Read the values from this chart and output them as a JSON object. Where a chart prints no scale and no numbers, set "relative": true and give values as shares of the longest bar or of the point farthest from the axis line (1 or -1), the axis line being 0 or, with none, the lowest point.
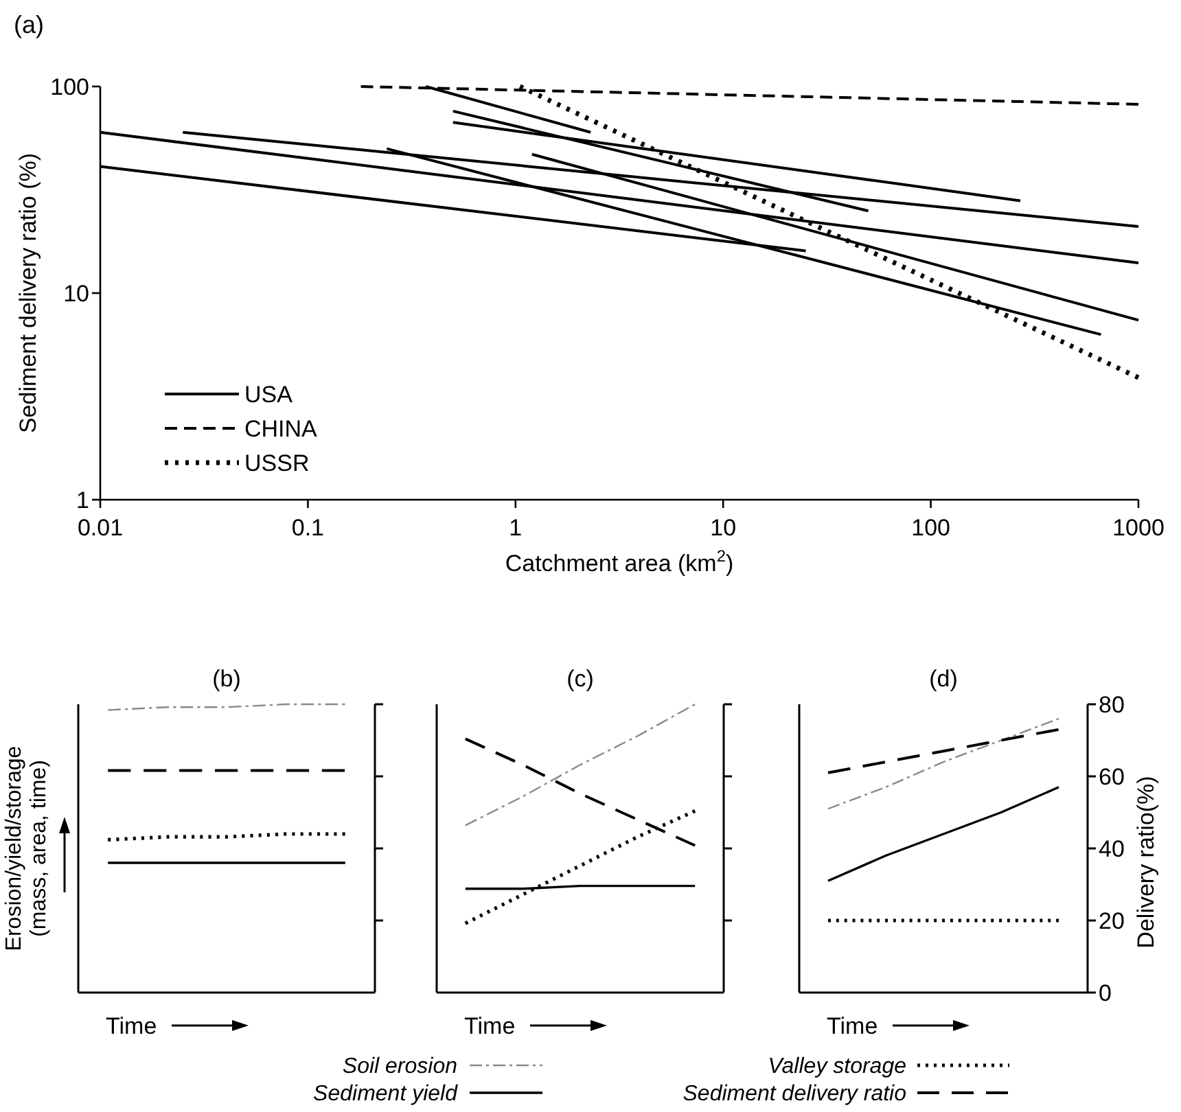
{
  "chart_data": [
    {
      "type": "line",
      "title": "(a)",
      "xlabel": "Catchment area (km$^{2}$)",
      "ylabel": "Sediment delivery ratio (%)",
      "log": "xy",
      "xlim": [
        0.01,
        1000
      ],
      "ylim": [
        1,
        100
      ],
      "xticks": [
        0.01,
        0.1,
        1,
        10,
        100,
        1000
      ],
      "yticks": [
        1,
        10,
        100
      ],
      "legend": "bottom left",
      "series": [
        {
          "name": "USA",
          "color": "#000000",
          "line_style": "solid",
          "x": [
            0.01,
            1000
          ],
          "values": [
            60,
            14
          ]
        },
        {
          "color": "#000000",
          "line_style": "solid",
          "x": [
            0.01,
            25
          ],
          "values": [
            41,
            16
          ]
        },
        {
          "color": "#000000",
          "line_style": "solid",
          "x": [
            0.025,
            1000
          ],
          "values": [
            60,
            21
          ]
        },
        {
          "color": "#000000",
          "line_style": "solid",
          "x": [
            0.24,
            660
          ],
          "values": [
            50,
            6.3
          ]
        },
        {
          "color": "#000000",
          "line_style": "solid",
          "x": [
            0.37,
            2.3
          ],
          "values": [
            100,
            60
          ]
        },
        {
          "color": "#000000",
          "line_style": "solid",
          "x": [
            0.5,
            50
          ],
          "values": [
            76,
            25
          ]
        },
        {
          "color": "#000000",
          "line_style": "solid",
          "x": [
            0.5,
            270
          ],
          "values": [
            67,
            28
          ]
        },
        {
          "color": "#000000",
          "line_style": "solid",
          "x": [
            1.2,
            1000
          ],
          "values": [
            47,
            7.4
          ]
        },
        {
          "name": "CHINA",
          "color": "#000000",
          "line_style": "dashed",
          "x": [
            0.18,
            1000
          ],
          "values": [
            100,
            82
          ]
        },
        {
          "name": "USSR",
          "color": "#000000",
          "line_style": "dotted",
          "x": [
            1.05,
            1000
          ],
          "values": [
            100,
            3.9
          ]
        }
      ]
    },
    {
      "type": "line",
      "title": "(b)",
      "xlabel": "Time",
      "ylabel": "Erosion/yield/storage (mass, area, time)",
      "categories": [
        null,
        null,
        null,
        null,
        null
      ],
      "relative": true,
      "series": [
        {
          "color": "#888888",
          "line_style": "dashdot",
          "values": [
            0.98,
            0.99,
            0.99,
            1,
            1
          ]
        },
        {
          "color": "#000000",
          "line_style": "solid",
          "values": [
            0.45,
            0.45,
            0.45,
            0.45,
            0.45
          ]
        },
        {
          "color": "#000000",
          "line_style": "dotted",
          "values": [
            0.53,
            0.54,
            0.54,
            0.55,
            0.55
          ]
        },
        {
          "color": "#000000",
          "line_style": "dashed",
          "values": [
            0.77,
            0.77,
            0.77,
            0.77,
            0.77
          ]
        }
      ]
    },
    {
      "type": "line",
      "title": "(c)",
      "xlabel": "Time",
      "categories": [
        null,
        null,
        null,
        null,
        null
      ],
      "relative": true,
      "legend": "bottom",
      "series": [
        {
          "name": "Soil erosion",
          "color": "#888888",
          "line_style": "dashdot",
          "values": [
            0.58,
            0.68,
            0.79,
            0.89,
            1
          ]
        },
        {
          "name": "Sediment yield",
          "color": "#000000",
          "line_style": "solid",
          "values": [
            0.36,
            0.36,
            0.37,
            0.37,
            0.37
          ]
        },
        {
          "name": "Valley storage",
          "color": "#000000",
          "line_style": "dotted",
          "values": [
            0.24,
            0.34,
            0.44,
            0.54,
            0.63
          ]
        },
        {
          "name": "Sediment delivery ratio",
          "color": "#000000",
          "line_style": "dashed",
          "values": [
            0.88,
            0.79,
            0.69,
            0.6,
            0.51
          ]
        }
      ]
    },
    {
      "type": "line",
      "title": "(d)",
      "xlabel": "Time",
      "ylabel": "Delivery ratio(%)",
      "categories": [
        null,
        null,
        null,
        null,
        null
      ],
      "ylim": [
        0,
        80
      ],
      "yticks": [
        0,
        20,
        40,
        60,
        80
      ],
      "tick_labels": "y",
      "series": [
        {
          "color": "#888888",
          "line_style": "dashdot",
          "values": [
            51,
            57,
            64,
            70,
            76
          ]
        },
        {
          "color": "#000000",
          "line_style": "solid",
          "values": [
            31,
            38,
            44,
            50,
            57
          ]
        },
        {
          "color": "#000000",
          "line_style": "dotted",
          "values": [
            20,
            20,
            20,
            20,
            20
          ]
        },
        {
          "color": "#000000",
          "line_style": "dashed",
          "values": [
            61,
            64,
            67,
            70,
            73
          ]
        }
      ]
    }
  ]
}
